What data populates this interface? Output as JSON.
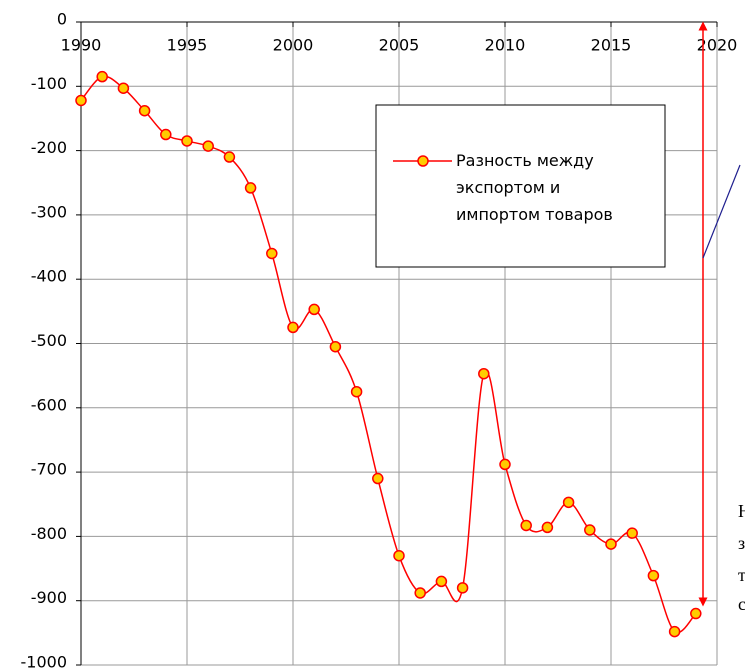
{
  "chart_data": {
    "type": "line",
    "x": [
      1990,
      1991,
      1992,
      1993,
      1994,
      1995,
      1996,
      1997,
      1998,
      1999,
      2000,
      2001,
      2002,
      2003,
      2004,
      2005,
      2006,
      2007,
      2008,
      2009,
      2010,
      2011,
      2012,
      2013,
      2014,
      2015,
      2016,
      2017,
      2018,
      2019
    ],
    "series": [
      {
        "name": "Разность между экспортом и импортом товаров",
        "color": "#ff0000",
        "marker_color": "#ffcc00",
        "values": [
          -122,
          -85,
          -103,
          -138,
          -175,
          -185,
          -193,
          -210,
          -258,
          -360,
          -475,
          -447,
          -505,
          -575,
          -710,
          -830,
          -888,
          -870,
          -880,
          -547,
          -688,
          -783,
          -786,
          -747,
          -790,
          -812,
          -795,
          -861,
          -948,
          -920
        ]
      }
    ],
    "xlim": [
      1990,
      2020
    ],
    "xticks": [
      1990,
      1995,
      2000,
      2005,
      2010,
      2015,
      2020
    ],
    "ylim": [
      -1000,
      0
    ],
    "yticks": [
      0,
      -100,
      -200,
      -300,
      -400,
      -500,
      -600,
      -700,
      -800,
      -900,
      -1000
    ],
    "grid": true,
    "legend": "upper right",
    "annotations": [
      "Н",
      "з",
      "т",
      "с"
    ]
  }
}
